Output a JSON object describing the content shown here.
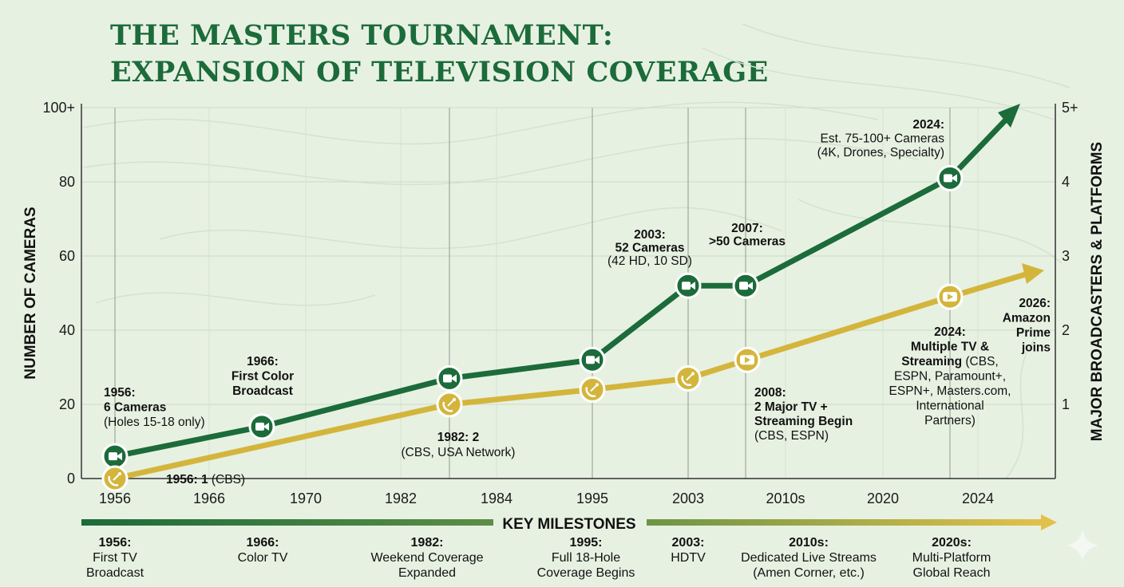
{
  "title_line1": "THE MASTERS TOURNAMENT:",
  "title_line2": "EXPANSION OF TELEVISION COVERAGE",
  "chart_data": {
    "type": "line",
    "title": "THE MASTERS TOURNAMENT: EXPANSION OF TELEVISION COVERAGE",
    "xlabel": "",
    "ylabel": "NUMBER OF CAMERAS",
    "y2label": "MAJOR BROADCASTERS & PLATFORMS",
    "categories": [
      "1956",
      "1966",
      "1970",
      "1982",
      "1984",
      "1995",
      "2003",
      "2010s",
      "2020",
      "2024"
    ],
    "y_ticks": [
      "0",
      "20",
      "40",
      "60",
      "80",
      "100+"
    ],
    "y2_ticks": [
      "1",
      "2",
      "3",
      "4",
      "5+"
    ],
    "ylim": [
      0,
      100
    ],
    "y2lim": [
      0,
      5
    ],
    "grid": true,
    "series": [
      {
        "name": "",
        "axis": "left",
        "color": "#1c6b3a",
        "marker_icon": "video-camera-icon",
        "points": [
          {
            "x": "1956",
            "y": 6
          },
          {
            "x": "1966",
            "y": 14
          },
          {
            "x": "1982",
            "y": 27
          },
          {
            "x": "1995",
            "y": 32
          },
          {
            "x": "2003",
            "y": 52
          },
          {
            "x": "2007",
            "y": 52
          },
          {
            "x": "2024",
            "y": 81
          }
        ]
      },
      {
        "name": "",
        "axis": "right",
        "color": "#d4b53c",
        "marker_icons": [
          "satellite-dish-icon",
          "satellite-dish-icon",
          "satellite-dish-icon",
          "satellite-dish-icon",
          "play-button-icon",
          "play-button-icon"
        ],
        "points": [
          {
            "x": "1956",
            "y": 0
          },
          {
            "x": "1982",
            "y": 1
          },
          {
            "x": "1995",
            "y": 1.2
          },
          {
            "x": "2003",
            "y": 1.35
          },
          {
            "x": "2008",
            "y": 1.6
          },
          {
            "x": "2024",
            "y": 2.45
          }
        ]
      }
    ],
    "annotations": [
      {
        "id": "a1956cam",
        "bold": [
          "1956:",
          "6 Cameras"
        ],
        "normal": [
          "(Holes 15-18 only)"
        ]
      },
      {
        "id": "a1956b",
        "bold": [
          "1956: 1"
        ],
        "normal": [
          " (CBS)"
        ]
      },
      {
        "id": "a1966",
        "bold": [
          "1966:",
          "First Color",
          "Broadcast"
        ],
        "normal": []
      },
      {
        "id": "a1982",
        "bold": [
          "1982: 2"
        ],
        "normal": [
          "(CBS, USA Network)"
        ]
      },
      {
        "id": "a2003",
        "bold": [
          "2003:",
          "52 Cameras"
        ],
        "normal": [
          "(42 HD, 10 SD)"
        ]
      },
      {
        "id": "a2007",
        "bold": [
          "2007:",
          ">50 Cameras"
        ],
        "normal": []
      },
      {
        "id": "a2008",
        "bold": [
          "2008:",
          "2 Major TV +",
          "Streaming Begin"
        ],
        "normal": [
          "(CBS, ESPN)"
        ]
      },
      {
        "id": "a2024cam",
        "bold": [
          "2024:"
        ],
        "normal": [
          "Est. 75-100+ Cameras",
          "(4K, Drones, Specialty)"
        ]
      },
      {
        "id": "a2024plat",
        "bold": [
          "2024:",
          "Multiple TV &",
          "Streaming"
        ],
        "normal": [
          " (CBS,",
          "ESPN, Paramount+,",
          "ESPN+, Masters.com,",
          "International",
          "Partners)"
        ]
      },
      {
        "id": "a2026",
        "bold": [
          "2026:",
          "Amazon",
          "Prime",
          "joins"
        ],
        "normal": []
      }
    ],
    "milestones_title": "KEY MILESTONES",
    "milestones": [
      {
        "year": "1956:",
        "text": [
          "First TV",
          "Broadcast"
        ]
      },
      {
        "year": "1966:",
        "text": [
          "Color TV"
        ]
      },
      {
        "year": "1982:",
        "text": [
          "Weekend Coverage",
          "Expanded"
        ]
      },
      {
        "year": "1995:",
        "text": [
          "Full 18-Hole",
          "Coverage Begins"
        ]
      },
      {
        "year": "2003:",
        "text": [
          "HDTV"
        ]
      },
      {
        "year": "2010s:",
        "text": [
          "Dedicated Live Streams",
          "(Amen Corner, etc.)"
        ]
      },
      {
        "year": "2020s:",
        "text": [
          "Multi-Platform",
          "Global Reach"
        ]
      }
    ]
  }
}
